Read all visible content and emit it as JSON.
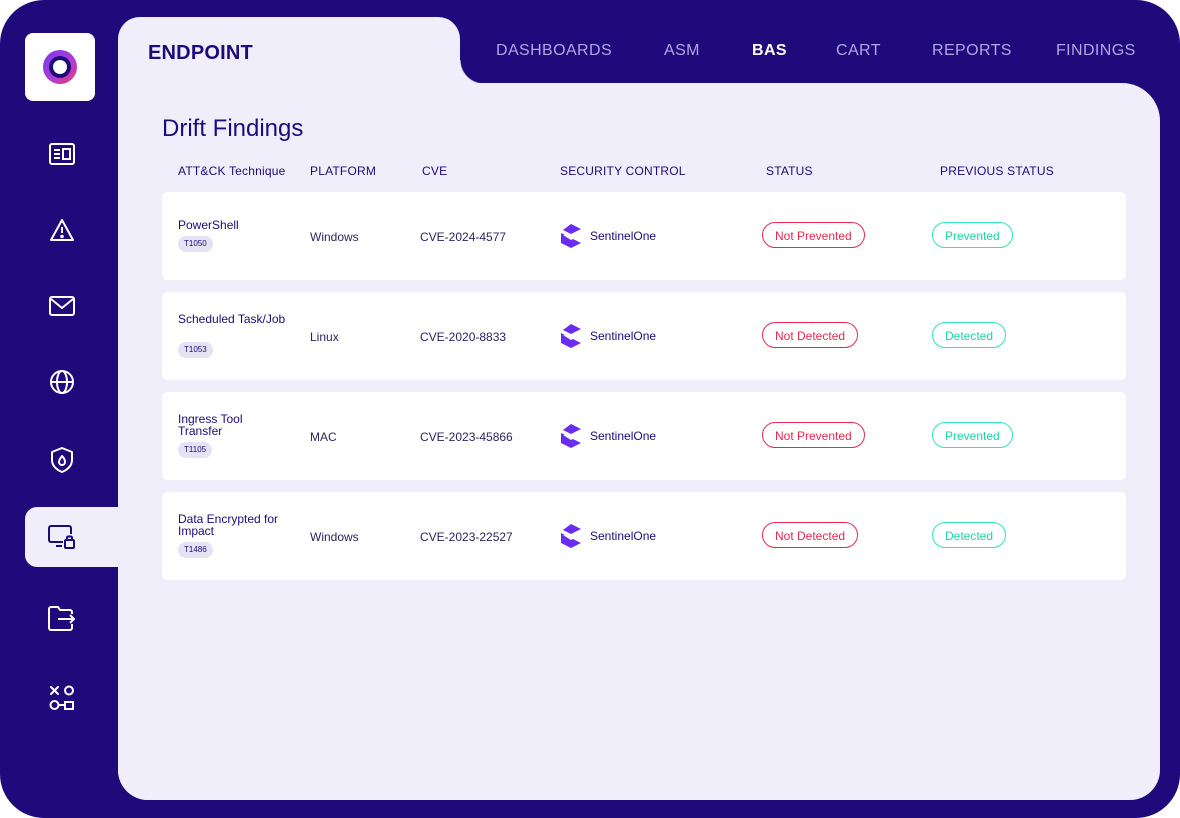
{
  "app": {
    "section_title": "ENDPOINT"
  },
  "topnav": [
    {
      "label": "DASHBOARDS",
      "active": false
    },
    {
      "label": "ASM",
      "active": false
    },
    {
      "label": "BAS",
      "active": true
    },
    {
      "label": "CART",
      "active": false
    },
    {
      "label": "REPORTS",
      "active": false
    },
    {
      "label": "FINDINGS",
      "active": false
    }
  ],
  "sidebar": {
    "items": [
      {
        "icon": "report-icon"
      },
      {
        "icon": "warning-icon"
      },
      {
        "icon": "mail-icon"
      },
      {
        "icon": "globe-icon"
      },
      {
        "icon": "shield-icon"
      },
      {
        "icon": "endpoint-lock-icon",
        "active": true
      },
      {
        "icon": "folder-export-icon"
      },
      {
        "icon": "mapping-icon"
      }
    ]
  },
  "page": {
    "title": "Drift Findings"
  },
  "table": {
    "columns": [
      "ATT&CK Technique",
      "PLATFORM",
      "CVE",
      "SECURITY CONTROL",
      "STATUS",
      "PREVIOUS STATUS"
    ],
    "rows": [
      {
        "technique": "PowerShell",
        "technique_id": "T1050",
        "platform": "Windows",
        "cve": "CVE-2024-4577",
        "control": "SentinelOne",
        "status": "Not Prevented",
        "previous_status": "Prevented"
      },
      {
        "technique": "Scheduled Task/Job",
        "technique_id": "T1053",
        "platform": "Linux",
        "cve": "CVE-2020-8833",
        "control": "SentinelOne",
        "status": "Not Detected",
        "previous_status": "Detected"
      },
      {
        "technique": "Ingress Tool Transfer",
        "technique_id": "T1105",
        "platform": "MAC",
        "cve": "CVE-2023-45866",
        "control": "SentinelOne",
        "status": "Not Prevented",
        "previous_status": "Prevented"
      },
      {
        "technique": "Data Encrypted for Impact",
        "technique_id": "T1486",
        "platform": "Windows",
        "cve": "CVE-2023-22527",
        "control": "SentinelOne",
        "status": "Not Detected",
        "previous_status": "Detected"
      }
    ]
  },
  "colors": {
    "brand": "#1e0a7a",
    "panel": "#efeefa",
    "alert": "#e8284f",
    "ok": "#2ee6b8",
    "sentinel": "#6a2cf0"
  }
}
